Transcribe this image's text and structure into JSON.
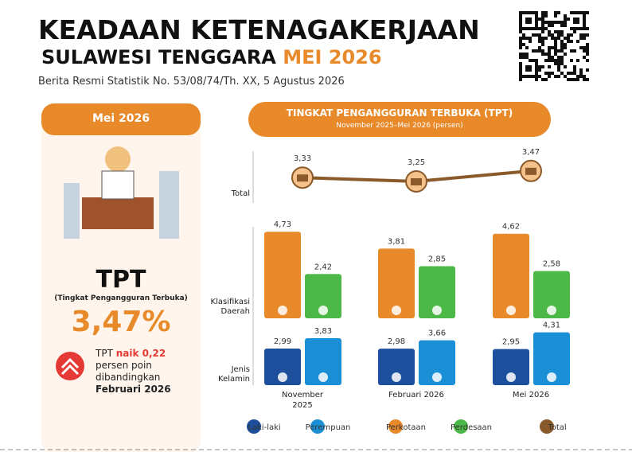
{
  "header": {
    "title_line1": "KEADAAN KETENAGAKERJAAN",
    "title_line2": "SULAWESI TENGGARA",
    "title_highlight": "MEI 2026",
    "subtitle": "Berita Resmi Statistik No. 53/08/74/Th. XX, 5 Agustus 2026"
  },
  "left_panel": {
    "period": "Mei 2026",
    "indicator": "TPT",
    "indicator_full": "(Tingkat Pengangguran Terbuka)",
    "value_text": "3,47%",
    "note": {
      "part1": "TPT",
      "part2": "naik 0,22",
      "line2": "persen poin",
      "line3": "dibandingkan",
      "line4": "Februari 2026"
    }
  },
  "chart_panel": {
    "title": "TINGKAT PENGANGGURAN TERBUKA (TPT)",
    "subtitle": "November 2025–Mei 2026 (persen)"
  },
  "chart_data": [
    {
      "type": "line",
      "row_label": "Total",
      "series": [
        {
          "name": "Total",
          "color": "#8b5a2b",
          "values": [
            3.33,
            3.25,
            3.47
          ],
          "value_labels": [
            "3,33",
            "3,25",
            "3,47"
          ]
        }
      ]
    },
    {
      "type": "bar",
      "row_label": "Klasifikasi Daerah",
      "series": [
        {
          "name": "Perkotaan",
          "color": "#e8892a",
          "values": [
            4.73,
            3.81,
            4.62
          ],
          "value_labels": [
            "4,73",
            "3,81",
            "4,62"
          ]
        },
        {
          "name": "Perdesaan",
          "color": "#4cb848",
          "values": [
            2.42,
            2.85,
            2.58
          ],
          "value_labels": [
            "2,42",
            "2,85",
            "2,58"
          ]
        }
      ]
    },
    {
      "type": "bar",
      "row_label": "Jenis Kelamin",
      "categories": [
        "November 2025",
        "Februari 2026",
        "Mei 2026"
      ],
      "series": [
        {
          "name": "Laki-laki",
          "color": "#1d4f9c",
          "values": [
            2.99,
            2.98,
            2.95
          ],
          "value_labels": [
            "2,99",
            "2,98",
            "2,95"
          ]
        },
        {
          "name": "Perempuan",
          "color": "#1a8fd6",
          "values": [
            3.83,
            3.66,
            4.31
          ],
          "value_labels": [
            "3,83",
            "3,66",
            "4,31"
          ]
        }
      ]
    }
  ]
}
